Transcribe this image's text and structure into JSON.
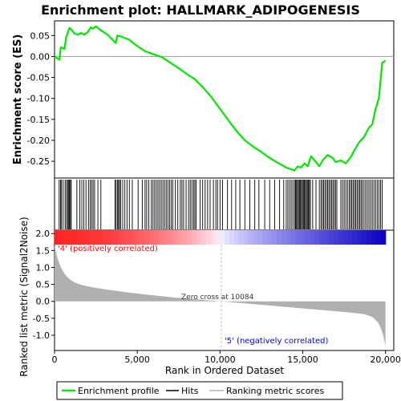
{
  "chart_data": {
    "type": "line",
    "title": "Enrichment plot: HALLMARK_ADIPOGENESIS",
    "xlabel": "Rank in Ordered Dataset",
    "ylabel_top": "Enrichment score (ES)",
    "ylabel_bottom": "Ranked list metric (Signal2Noise)",
    "xlim": [
      0,
      20500
    ],
    "x_ticks": [
      0,
      5000,
      10000,
      15000,
      20000
    ],
    "x_tick_labels": [
      "0",
      "5,000",
      "10,000",
      "15,000",
      "20,000"
    ],
    "es_ylim": [
      -0.29,
      0.085
    ],
    "es_ticks": [
      0.05,
      0.0,
      -0.05,
      -0.1,
      -0.15,
      -0.2,
      -0.25
    ],
    "es_tick_labels": [
      "0.05",
      "0.00",
      "-0.05",
      "-0.10",
      "-0.15",
      "-0.20",
      "-0.25"
    ],
    "metric_ylim": [
      -1.45,
      2.1
    ],
    "metric_ticks": [
      2.0,
      1.5,
      1.0,
      0.5,
      0.0,
      -0.5,
      -1.0
    ],
    "metric_tick_labels": [
      "2.0",
      "1.5",
      "1.0",
      "0.5",
      "0.0",
      "-0.5",
      "-1.0"
    ],
    "grid": false,
    "annotations": {
      "positive_label": "'4' (positively correlated)",
      "negative_label": "'5' (negatively correlated)",
      "zero_cross": "Zero cross at 10084",
      "zero_cross_x": 10084
    },
    "colors": {
      "es_line": "#00e600",
      "positive_label": "#ff0000",
      "negative_label": "#0000ff",
      "metric_fill": "#b0b0b0",
      "hits": "#000000"
    },
    "legend": {
      "placement": "bottom",
      "entries": [
        "Enrichment profile",
        "Hits",
        "Ranking metric scores"
      ]
    },
    "es_profile": {
      "x": [
        0,
        300,
        380,
        600,
        700,
        900,
        1000,
        1200,
        1400,
        1600,
        1800,
        2000,
        2200,
        2300,
        2500,
        2700,
        2900,
        3200,
        3500,
        3700,
        3800,
        4000,
        4500,
        5000,
        5500,
        6000,
        6500,
        7000,
        7500,
        8000,
        8500,
        9000,
        9500,
        10000,
        10500,
        11000,
        11500,
        12000,
        12500,
        13000,
        13500,
        14000,
        14200,
        14500,
        14700,
        14900,
        15100,
        15300,
        15500,
        15800,
        16000,
        16200,
        16500,
        16800,
        17000,
        17300,
        17600,
        17900,
        18100,
        18400,
        18700,
        19000,
        19200,
        19400,
        19600,
        19800,
        20000
      ],
      "y": [
        0.0,
        -0.008,
        0.022,
        0.018,
        0.045,
        0.068,
        0.065,
        0.055,
        0.052,
        0.056,
        0.052,
        0.058,
        0.07,
        0.066,
        0.072,
        0.065,
        0.06,
        0.052,
        0.04,
        0.032,
        0.05,
        0.048,
        0.04,
        0.025,
        0.012,
        0.005,
        -0.002,
        -0.015,
        -0.028,
        -0.042,
        -0.055,
        -0.075,
        -0.098,
        -0.125,
        -0.152,
        -0.178,
        -0.2,
        -0.215,
        -0.228,
        -0.242,
        -0.254,
        -0.265,
        -0.268,
        -0.272,
        -0.262,
        -0.265,
        -0.255,
        -0.262,
        -0.238,
        -0.252,
        -0.262,
        -0.248,
        -0.235,
        -0.242,
        -0.252,
        -0.248,
        -0.255,
        -0.24,
        -0.225,
        -0.205,
        -0.192,
        -0.17,
        -0.162,
        -0.125,
        -0.1,
        -0.015,
        -0.01
      ]
    },
    "hits_x": [
      280,
      360,
      420,
      520,
      640,
      720,
      800,
      860,
      900,
      960,
      1010,
      1350,
      1530,
      1650,
      1770,
      1900,
      2050,
      2150,
      2240,
      2330,
      2420,
      2620,
      2800,
      3650,
      3720,
      3800,
      3870,
      3920,
      4000,
      4120,
      4250,
      4380,
      4520,
      4700,
      5050,
      5300,
      5470,
      5570,
      5700,
      5850,
      5950,
      6050,
      6150,
      6250,
      6350,
      6450,
      6550,
      6650,
      6750,
      6850,
      6950,
      7050,
      7150,
      7300,
      7450,
      7600,
      7700,
      7800,
      7950,
      8100,
      8200,
      8300,
      8400,
      8480,
      8560,
      8800,
      8950,
      9100,
      9250,
      9400,
      9600,
      9750,
      9850,
      10000,
      10150,
      10450,
      10700,
      10950,
      11200,
      11500,
      11800,
      12100,
      12350,
      12700,
      13000,
      13300,
      13600,
      13850,
      14000,
      14100,
      14200,
      14300,
      14400,
      14500,
      14560,
      14620,
      14680,
      14740,
      14800,
      14860,
      14920,
      14980,
      15040,
      15100,
      15160,
      15220,
      15280,
      15340,
      15400,
      15460,
      15600,
      15800,
      16000,
      16100,
      16180,
      16260,
      16340,
      16420,
      16500,
      16580,
      16660,
      16740,
      16820,
      16900,
      16980,
      17060,
      17300,
      17400,
      17500,
      17600,
      17700,
      17800,
      17880,
      17960,
      18040,
      18120,
      18200,
      18280,
      18360,
      18440,
      18520,
      18600,
      18700,
      18800,
      18900,
      19000,
      19100,
      19200,
      19300,
      19400,
      19500,
      19600,
      19700,
      19800
    ]
  }
}
